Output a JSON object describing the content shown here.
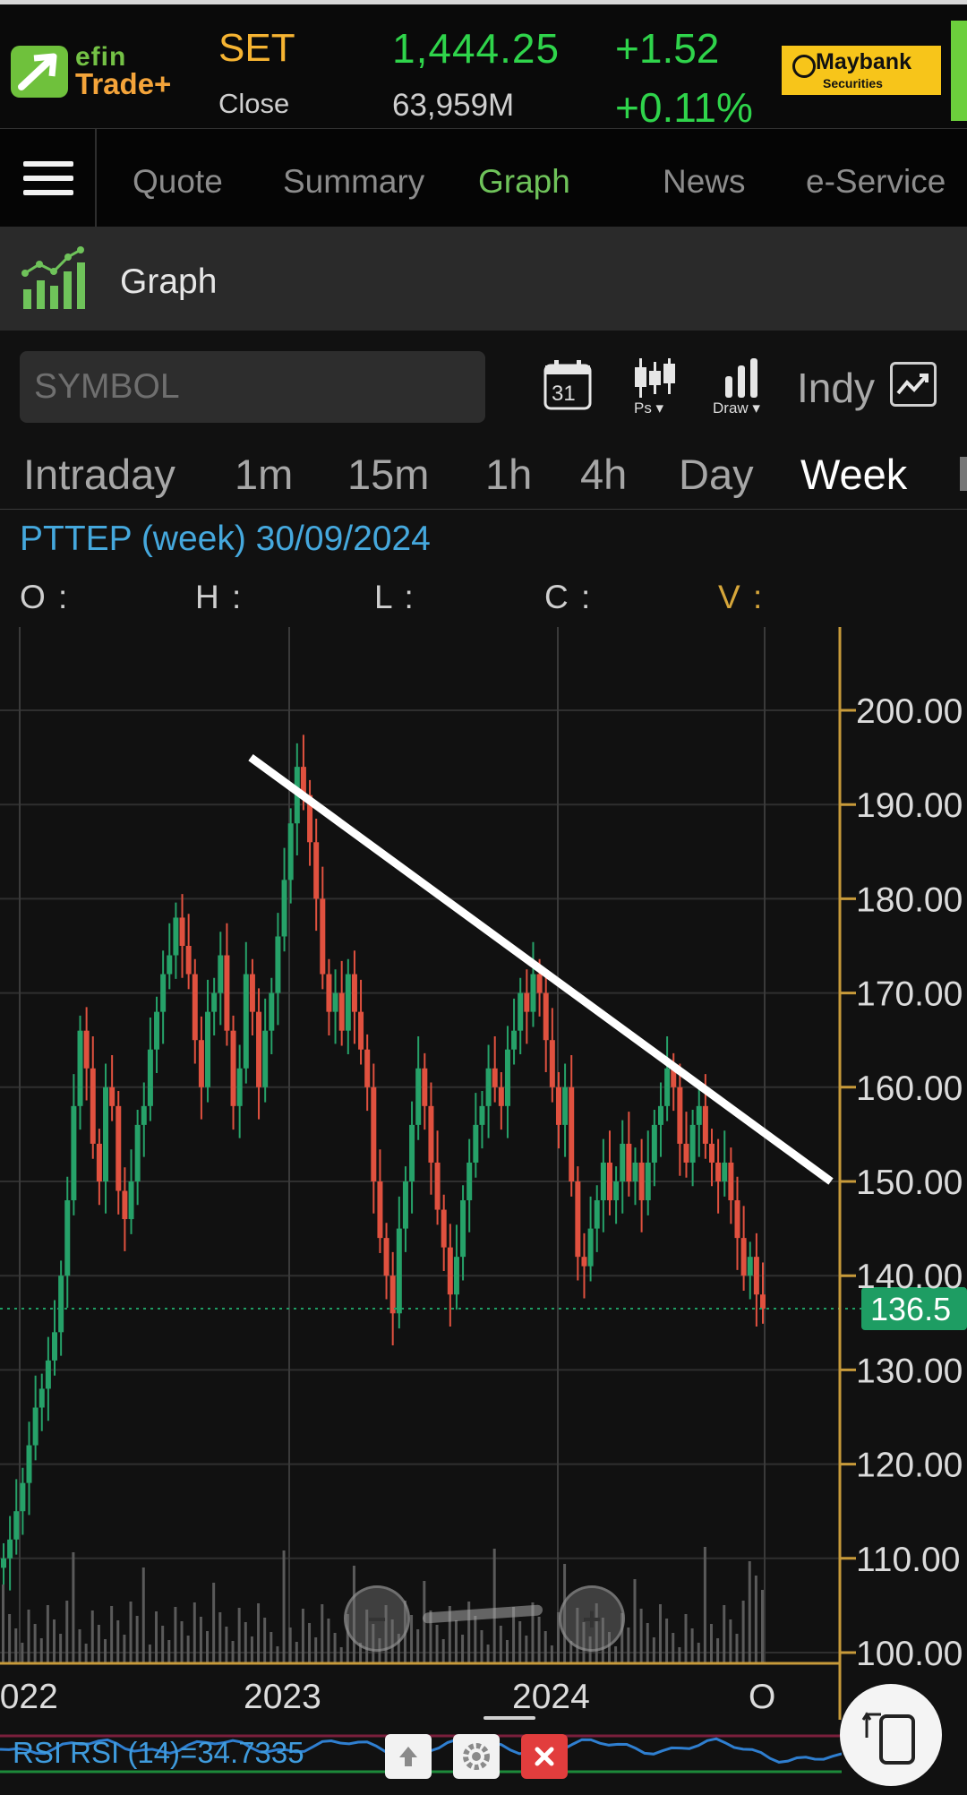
{
  "brand": {
    "logo_top": "efin",
    "logo_bottom": "Trade+"
  },
  "market": {
    "name": "SET",
    "status": "Close",
    "index": "1,444.25",
    "volume": "63,959M",
    "change": "+1.52",
    "change_pct": "+0.11%"
  },
  "broker": {
    "name": "Maybank",
    "sub": "Securities"
  },
  "nav": {
    "menu_icon": "hamburger-menu-icon",
    "tabs": [
      {
        "label": "Quote",
        "active": false
      },
      {
        "label": "Summary",
        "active": false
      },
      {
        "label": "Graph",
        "active": true
      },
      {
        "label": "News",
        "active": false
      },
      {
        "label": "e-Service",
        "active": false
      }
    ]
  },
  "section": {
    "title": "Graph",
    "icon": "chart-growth-icon"
  },
  "toolbar": {
    "symbol_placeholder": "SYMBOL",
    "calendar_day": "31",
    "ps_label": "Ps ▾",
    "draw_label": "Draw ▾",
    "indy_label": "Indy"
  },
  "periods": [
    "Intraday",
    "1m",
    "15m",
    "1h",
    "4h",
    "Day",
    "Week"
  ],
  "active_period": "Week",
  "chart_info": {
    "title": "PTTEP (week) 30/09/2024",
    "o": "O :",
    "h": "H :",
    "l": "L :",
    "c": "C :",
    "v": "V :"
  },
  "colors": {
    "up": "#26a269",
    "down": "#e0513f",
    "axis": "#c79a3a",
    "price_tag": "#1e9d63",
    "accent": "#6fc35a"
  },
  "chart_data": {
    "type": "candlestick",
    "symbol": "PTTEP",
    "interval": "week",
    "y_ticks": [
      "200.00",
      "190.00",
      "180.00",
      "170.00",
      "160.00",
      "150.00",
      "140.00",
      "130.00",
      "120.00",
      "110.00",
      "100.00"
    ],
    "ylim": [
      100,
      200
    ],
    "x_ticks": [
      "2022",
      "2023",
      "2024",
      "O"
    ],
    "last_price": "136.5",
    "close_approx": [
      110,
      112,
      115,
      118,
      122,
      126,
      128,
      131,
      134,
      140,
      148,
      158,
      166,
      162,
      154,
      150,
      160,
      158,
      149,
      146,
      150,
      156,
      158,
      164,
      168,
      172,
      174,
      178,
      175,
      172,
      165,
      160,
      168,
      170,
      174,
      166,
      158,
      162,
      172,
      168,
      160,
      166,
      170,
      176,
      182,
      188,
      194,
      191,
      186,
      180,
      172,
      168,
      170,
      166,
      172,
      168,
      164,
      160,
      150,
      144,
      140,
      136,
      145,
      150,
      156,
      162,
      158,
      152,
      147,
      143,
      138,
      142,
      148,
      152,
      156,
      158,
      162,
      160,
      158,
      164,
      166,
      170,
      168,
      172,
      170,
      165,
      160,
      156,
      160,
      150,
      142,
      141,
      145,
      148,
      152,
      148,
      150,
      154,
      150,
      152,
      148,
      152,
      156,
      158,
      162,
      160,
      154,
      152,
      156,
      158,
      154,
      152,
      150,
      152,
      148,
      144,
      140,
      142,
      138,
      136.5
    ],
    "trendline": {
      "start": [
        "2022-11",
        195
      ],
      "end": [
        "2024-11",
        150
      ]
    },
    "indicator": {
      "name": "RSI",
      "label": "RSI RSI (14)=34.7335",
      "value": 34.7335
    }
  }
}
